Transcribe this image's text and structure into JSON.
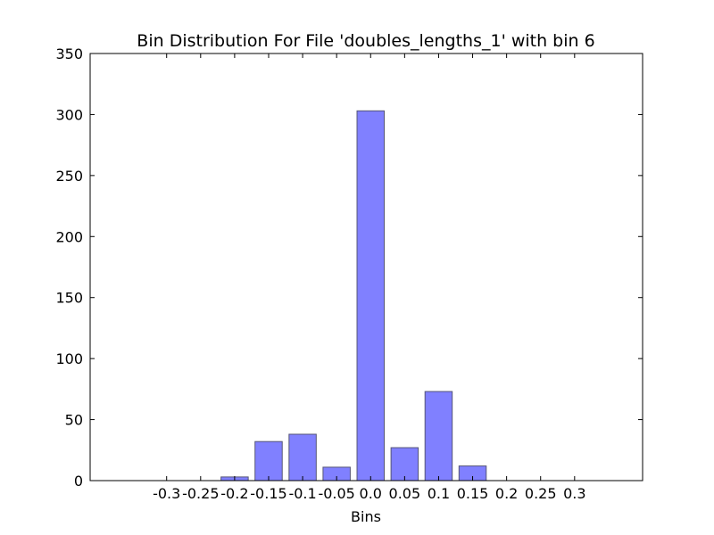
{
  "chart_data": {
    "type": "bar",
    "title": "Bin Distribution For File 'doubles_lengths_1' with bin 6",
    "xlabel": "Bins",
    "ylabel": "",
    "categories": [
      "-0.3",
      "-0.25",
      "-0.2",
      "-0.15",
      "-0.1",
      "-0.05",
      "0.0",
      "0.05",
      "0.1",
      "0.15",
      "0.2",
      "0.25",
      "0.3"
    ],
    "values": [
      0,
      0,
      3,
      32,
      38,
      11,
      303,
      27,
      73,
      12,
      0,
      0,
      0
    ],
    "ylim": [
      0,
      350
    ],
    "yticks": [
      "0",
      "50",
      "100",
      "150",
      "200",
      "250",
      "300",
      "350"
    ],
    "grid": false,
    "bar_color": "#8080ff",
    "bar_edge_color": "#555577"
  }
}
